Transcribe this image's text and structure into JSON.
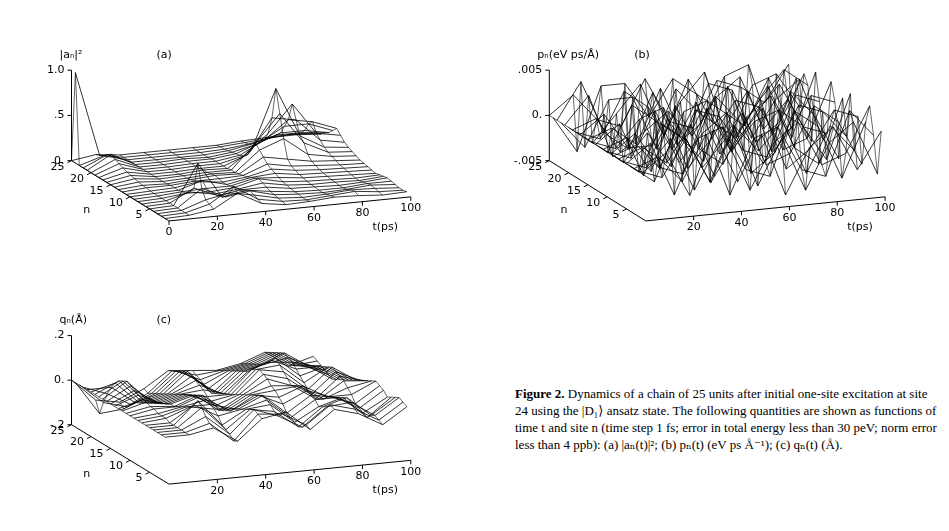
{
  "chart_data": [
    {
      "type": "surface",
      "title": "(a)",
      "x_label": "t(ps)",
      "y_label": "n",
      "z_label": "|aₙ|²",
      "color": "#000000",
      "x": [
        0,
        10,
        20,
        30,
        40,
        50,
        60,
        70,
        80,
        90,
        100
      ],
      "y": [
        1,
        2,
        3,
        4,
        5,
        6,
        7,
        8,
        9,
        10,
        11,
        12,
        13,
        14,
        15,
        16,
        17,
        18,
        19,
        20,
        21,
        22,
        23,
        24,
        25
      ],
      "xlim": [
        0,
        100
      ],
      "xticks": [
        0,
        20,
        40,
        60,
        80,
        100
      ],
      "ylim": [
        0,
        25
      ],
      "yticks": [
        5,
        10,
        15,
        20,
        25
      ],
      "zlim": [
        0,
        1
      ],
      "zticks": [
        {
          "value": 0,
          "label": "0."
        },
        {
          "value": 0.5,
          "label": ".5"
        },
        {
          "value": 1,
          "label": "1.0"
        }
      ],
      "z": [
        [
          0,
          0.01,
          0.05,
          0.2,
          0.06,
          0.02,
          0.03,
          0.05,
          0.04,
          0.02,
          0.03
        ],
        [
          0,
          0.01,
          0.08,
          0.25,
          0.08,
          0.03,
          0.02,
          0.04,
          0.06,
          0.03,
          0.02
        ],
        [
          0,
          0.01,
          0.1,
          0.15,
          0.1,
          0.04,
          0.02,
          0.03,
          0.05,
          0.04,
          0.02
        ],
        [
          0,
          0.01,
          0.2,
          0.08,
          0.12,
          0.05,
          0.03,
          0.02,
          0.03,
          0.05,
          0.03
        ],
        [
          0,
          0.01,
          0.45,
          0.05,
          0.1,
          0.06,
          0.03,
          0.02,
          0.02,
          0.04,
          0.04
        ],
        [
          0,
          0.01,
          0.15,
          0.04,
          0.08,
          0.08,
          0.04,
          0.03,
          0.02,
          0.03,
          0.05
        ],
        [
          0,
          0.01,
          0.08,
          0.03,
          0.06,
          0.1,
          0.05,
          0.03,
          0.03,
          0.02,
          0.04
        ],
        [
          0,
          0.01,
          0.04,
          0.03,
          0.05,
          0.12,
          0.06,
          0.04,
          0.03,
          0.02,
          0.03
        ],
        [
          0,
          0.01,
          0.03,
          0.04,
          0.04,
          0.1,
          0.08,
          0.05,
          0.04,
          0.03,
          0.02
        ],
        [
          0,
          0.01,
          0.02,
          0.1,
          0.03,
          0.08,
          0.1,
          0.06,
          0.05,
          0.04,
          0.03
        ],
        [
          0,
          0.01,
          0.02,
          0.06,
          0.03,
          0.06,
          0.12,
          0.08,
          0.06,
          0.05,
          0.04
        ],
        [
          0,
          0.02,
          0.02,
          0.04,
          0.04,
          0.05,
          0.15,
          0.1,
          0.08,
          0.06,
          0.05
        ],
        [
          0,
          0.02,
          0.01,
          0.03,
          0.05,
          0.04,
          0.2,
          0.15,
          0.1,
          0.08,
          0.06
        ],
        [
          0,
          0.03,
          0.01,
          0.02,
          0.04,
          0.03,
          0.25,
          0.35,
          0.15,
          0.1,
          0.08
        ],
        [
          0,
          0.04,
          0.01,
          0.02,
          0.03,
          0.03,
          0.3,
          0.6,
          0.25,
          0.12,
          0.1
        ],
        [
          0,
          0.05,
          0.01,
          0.01,
          0.03,
          0.02,
          0.2,
          0.85,
          0.3,
          0.15,
          0.12
        ],
        [
          0,
          0.06,
          0.01,
          0.01,
          0.02,
          0.02,
          0.12,
          0.5,
          0.45,
          0.2,
          0.15
        ],
        [
          0,
          0.08,
          0.01,
          0.01,
          0.02,
          0.02,
          0.08,
          0.3,
          0.6,
          0.25,
          0.2
        ],
        [
          0,
          0.1,
          0.01,
          0.01,
          0.02,
          0.02,
          0.06,
          0.2,
          0.4,
          0.35,
          0.25
        ],
        [
          0,
          0.12,
          0.01,
          0.01,
          0.02,
          0.02,
          0.05,
          0.15,
          0.3,
          0.3,
          0.2
        ],
        [
          0,
          0.15,
          0.01,
          0.01,
          0.02,
          0.01,
          0.04,
          0.1,
          0.2,
          0.2,
          0.15
        ],
        [
          0,
          0.12,
          0.01,
          0.01,
          0.01,
          0.01,
          0.03,
          0.08,
          0.15,
          0.15,
          0.12
        ],
        [
          0,
          0.08,
          0.01,
          0.01,
          0.01,
          0.01,
          0.02,
          0.05,
          0.1,
          0.1,
          0.08
        ],
        [
          1,
          0.06,
          0.01,
          0.01,
          0.01,
          0.01,
          0.02,
          0.04,
          0.06,
          0.08,
          0.06
        ],
        [
          0,
          0.04,
          0.01,
          0.01,
          0.01,
          0.01,
          0.01,
          0.03,
          0.04,
          0.05,
          0.04
        ]
      ]
    },
    {
      "type": "surface",
      "title": "(b)",
      "x_label": "t(ps)",
      "y_label": "n",
      "z_label": "pₙ(eV ps/Å)",
      "color": "#000000",
      "x": [
        0,
        10,
        20,
        30,
        40,
        50,
        60,
        70,
        80,
        90,
        100
      ],
      "y": [
        1,
        2,
        3,
        4,
        5,
        6,
        7,
        8,
        9,
        10,
        11,
        12,
        13,
        14,
        15,
        16,
        17,
        18,
        19,
        20,
        21,
        22,
        23,
        24,
        25
      ],
      "xlim": [
        0,
        100
      ],
      "xticks": [
        20,
        40,
        60,
        80,
        100
      ],
      "ylim": [
        0,
        25
      ],
      "yticks": [
        5,
        10,
        15,
        20,
        25
      ],
      "zlim": [
        -0.005,
        0.005
      ],
      "zticks": [
        {
          "value": -0.005,
          "label": "-.005"
        },
        {
          "value": 0,
          "label": "0."
        },
        {
          "value": 0.005,
          "label": ".005"
        }
      ],
      "z": [
        [
          0,
          0.002,
          -0.003,
          0.004,
          -0.002,
          0.003,
          -0.004,
          0.001,
          0.003,
          -0.002,
          0.002
        ],
        [
          0,
          -0.001,
          0.003,
          -0.002,
          0.004,
          -0.003,
          0.002,
          -0.004,
          0.001,
          0.003,
          -0.003
        ],
        [
          0,
          0.001,
          -0.002,
          0.003,
          -0.004,
          0.002,
          0.003,
          -0.002,
          -0.003,
          0.004,
          0.001
        ],
        [
          0,
          -0.002,
          0.004,
          -0.001,
          0.002,
          -0.004,
          0.001,
          0.003,
          -0.002,
          -0.001,
          0.004
        ],
        [
          0,
          0.002,
          -0.004,
          0.002,
          0.003,
          -0.002,
          -0.003,
          0.004,
          0.002,
          -0.004,
          0.002
        ],
        [
          0,
          -0.001,
          0.002,
          -0.004,
          0.001,
          0.004,
          -0.002,
          -0.001,
          0.004,
          0.002,
          -0.003
        ],
        [
          0,
          0.001,
          -0.001,
          0.003,
          -0.003,
          0.001,
          0.004,
          -0.003,
          -0.001,
          0.003,
          0.002
        ],
        [
          0,
          -0.002,
          0.003,
          0.001,
          -0.004,
          0.002,
          -0.001,
          0.002,
          -0.004,
          0.001,
          -0.002
        ],
        [
          0,
          0.002,
          -0.002,
          -0.003,
          0.004,
          -0.001,
          0.002,
          0.003,
          0.001,
          -0.003,
          0.004
        ],
        [
          0,
          -0.001,
          0.004,
          -0.002,
          0.001,
          0.003,
          -0.004,
          -0.002,
          0.003,
          0.002,
          -0.001
        ],
        [
          0,
          0.001,
          -0.003,
          0.004,
          -0.001,
          -0.003,
          0.002,
          0.004,
          -0.002,
          -0.004,
          0.003
        ],
        [
          0,
          -0.002,
          0.001,
          -0.003,
          0.003,
          0.002,
          -0.002,
          -0.003,
          0.004,
          0.001,
          -0.004
        ],
        [
          0,
          0.002,
          -0.004,
          0.002,
          -0.002,
          0.004,
          0.001,
          -0.004,
          -0.001,
          0.003,
          0.002
        ],
        [
          0,
          -0.001,
          0.002,
          0.003,
          -0.004,
          -0.001,
          0.003,
          0.002,
          -0.003,
          -0.002,
          0.004
        ],
        [
          0,
          0.001,
          -0.001,
          -0.004,
          0.002,
          0.003,
          -0.003,
          0.001,
          0.004,
          -0.001,
          -0.002
        ],
        [
          0,
          -0.002,
          0.003,
          0.001,
          -0.001,
          -0.004,
          0.004,
          -0.002,
          0.002,
          0.004,
          -0.003
        ],
        [
          0,
          0.002,
          -0.002,
          -0.002,
          0.004,
          0.001,
          -0.001,
          0.003,
          -0.004,
          0.002,
          0.001
        ],
        [
          0,
          -0.001,
          0.004,
          0.002,
          -0.003,
          0.002,
          -0.004,
          -0.001,
          0.003,
          -0.003,
          0.004
        ],
        [
          0,
          0.001,
          -0.003,
          -0.001,
          0.001,
          -0.002,
          0.002,
          0.004,
          -0.002,
          0.001,
          -0.004
        ],
        [
          0,
          -0.002,
          0.001,
          0.004,
          -0.002,
          0.004,
          -0.001,
          -0.003,
          0.001,
          0.004,
          0.002
        ],
        [
          0,
          0.003,
          -0.004,
          -0.003,
          0.003,
          -0.003,
          0.003,
          0.002,
          -0.004,
          -0.002,
          0.003
        ],
        [
          0,
          -0.003,
          0.002,
          0.002,
          -0.004,
          0.001,
          0.004,
          -0.004,
          0.002,
          0.003,
          -0.001
        ],
        [
          0,
          0.004,
          -0.002,
          -0.004,
          0.002,
          -0.004,
          -0.002,
          0.003,
          0.004,
          -0.004,
          0.002
        ],
        [
          0,
          -0.004,
          0.003,
          0.003,
          -0.001,
          0.003,
          0.001,
          -0.001,
          -0.003,
          0.002,
          -0.004
        ],
        [
          0,
          0.002,
          -0.001,
          -0.002,
          0.003,
          -0.002,
          -0.003,
          0.002,
          0.001,
          -0.001,
          0.003
        ]
      ]
    },
    {
      "type": "surface",
      "title": "(c)",
      "x_label": "t(ps)",
      "y_label": "n",
      "z_label": "qₙ(Å)",
      "color": "#000000",
      "x": [
        0,
        10,
        20,
        30,
        40,
        50,
        60,
        70,
        80,
        90,
        100
      ],
      "y": [
        1,
        2,
        3,
        4,
        5,
        6,
        7,
        8,
        9,
        10,
        11,
        12,
        13,
        14,
        15,
        16,
        17,
        18,
        19,
        20,
        21,
        22,
        23,
        24,
        25
      ],
      "xlim": [
        0,
        100
      ],
      "xticks": [
        20,
        40,
        60,
        80,
        100
      ],
      "ylim": [
        0,
        25
      ],
      "yticks": [
        5,
        10,
        15,
        20,
        25
      ],
      "zlim": [
        -0.2,
        0.2
      ],
      "zticks": [
        {
          "value": -0.2,
          "label": "-.2"
        },
        {
          "value": 0,
          "label": "0."
        },
        {
          "value": 0.2,
          "label": ".2"
        }
      ],
      "z": [
        [
          0,
          0,
          0.02,
          -0.05,
          0.04,
          0.06,
          -0.03,
          0.05,
          0.02,
          -0.04,
          0.03
        ],
        [
          0,
          0,
          0.03,
          -0.06,
          0.05,
          0.04,
          -0.02,
          0.06,
          0.03,
          -0.03,
          0.04
        ],
        [
          0,
          0,
          0.05,
          -0.04,
          0.06,
          0.02,
          -0.04,
          0.04,
          0.05,
          -0.02,
          0.05
        ],
        [
          0,
          0,
          0.08,
          -0.03,
          0.05,
          0.03,
          -0.05,
          0.03,
          0.06,
          -0.03,
          0.04
        ],
        [
          0,
          0,
          0.1,
          -0.02,
          0.04,
          0.05,
          -0.04,
          0.02,
          0.05,
          -0.05,
          0.03
        ],
        [
          0,
          0,
          0.07,
          0.01,
          0.03,
          0.06,
          -0.03,
          0.04,
          0.04,
          -0.04,
          0.02
        ],
        [
          0,
          0.01,
          0.05,
          0.03,
          0.02,
          0.07,
          -0.02,
          0.05,
          0.03,
          -0.03,
          0.04
        ],
        [
          0,
          0.01,
          0.04,
          0.04,
          0.01,
          0.06,
          0.01,
          0.06,
          0.02,
          -0.02,
          0.05
        ],
        [
          0,
          0.01,
          0.03,
          0.05,
          -0.01,
          0.05,
          0.03,
          0.07,
          0.01,
          0.01,
          0.06
        ],
        [
          0,
          0.02,
          0.02,
          0.06,
          -0.02,
          0.04,
          0.05,
          0.06,
          -0.01,
          0.03,
          0.05
        ],
        [
          0,
          0.02,
          0.01,
          0.05,
          -0.03,
          0.03,
          0.06,
          0.05,
          -0.02,
          0.05,
          0.04
        ],
        [
          0,
          0.03,
          0.01,
          0.04,
          -0.04,
          0.02,
          0.08,
          0.04,
          -0.03,
          0.06,
          0.03
        ],
        [
          0,
          0.03,
          0,
          0.03,
          -0.03,
          0.01,
          0.09,
          0.06,
          -0.02,
          0.07,
          0.02
        ],
        [
          0,
          0.04,
          -0.01,
          0.02,
          -0.02,
          0,
          0.1,
          0.08,
          -0.01,
          0.08,
          0.01
        ],
        [
          0,
          0.05,
          -0.02,
          0.01,
          -0.01,
          -0.01,
          0.09,
          0.1,
          0.01,
          0.07,
          0
        ],
        [
          0,
          0.06,
          -0.03,
          0,
          0.01,
          -0.02,
          0.08,
          0.12,
          0.03,
          0.06,
          -0.01
        ],
        [
          0,
          0.07,
          -0.04,
          -0.01,
          0.02,
          -0.03,
          0.06,
          0.1,
          0.05,
          0.05,
          -0.02
        ],
        [
          0,
          0.06,
          -0.05,
          -0.02,
          0.03,
          -0.04,
          0.05,
          0.08,
          0.07,
          0.04,
          -0.03
        ],
        [
          0,
          0.05,
          -0.06,
          -0.03,
          0.04,
          -0.05,
          0.04,
          0.06,
          0.08,
          0.03,
          -0.04
        ],
        [
          0,
          0.03,
          -0.07,
          -0.04,
          0.05,
          -0.06,
          0.03,
          0.05,
          0.09,
          0.02,
          -0.05
        ],
        [
          0,
          0,
          -0.08,
          -0.05,
          0.04,
          -0.05,
          0.02,
          0.04,
          0.08,
          0.01,
          -0.04
        ],
        [
          0,
          -0.04,
          -0.1,
          -0.06,
          0.03,
          -0.04,
          0.01,
          0.03,
          0.07,
          0,
          -0.03
        ],
        [
          0,
          -0.09,
          -0.12,
          -0.07,
          0.02,
          -0.03,
          0,
          0.02,
          0.06,
          -0.01,
          -0.02
        ],
        [
          0,
          -0.15,
          -0.14,
          -0.08,
          0.01,
          -0.02,
          -0.01,
          0.01,
          0.05,
          -0.02,
          -0.01
        ],
        [
          0,
          -0.1,
          -0.12,
          -0.07,
          0,
          -0.01,
          -0.02,
          0,
          0.04,
          -0.03,
          0
        ]
      ]
    }
  ],
  "caption": {
    "label": "Figure 2.",
    "text": "Dynamics of a chain of 25 units after initial one-site excitation at site 24 using the |D₁⟩ ansatz state. The following quantities are shown as functions of time t and site n (time step 1 fs; error in total energy less than 30 peV; norm error less than 4 ppb): (a) |aₙ(t)|²; (b) pₙ(t) (eV ps Å⁻¹); (c) qₙ(t) (Å)."
  }
}
